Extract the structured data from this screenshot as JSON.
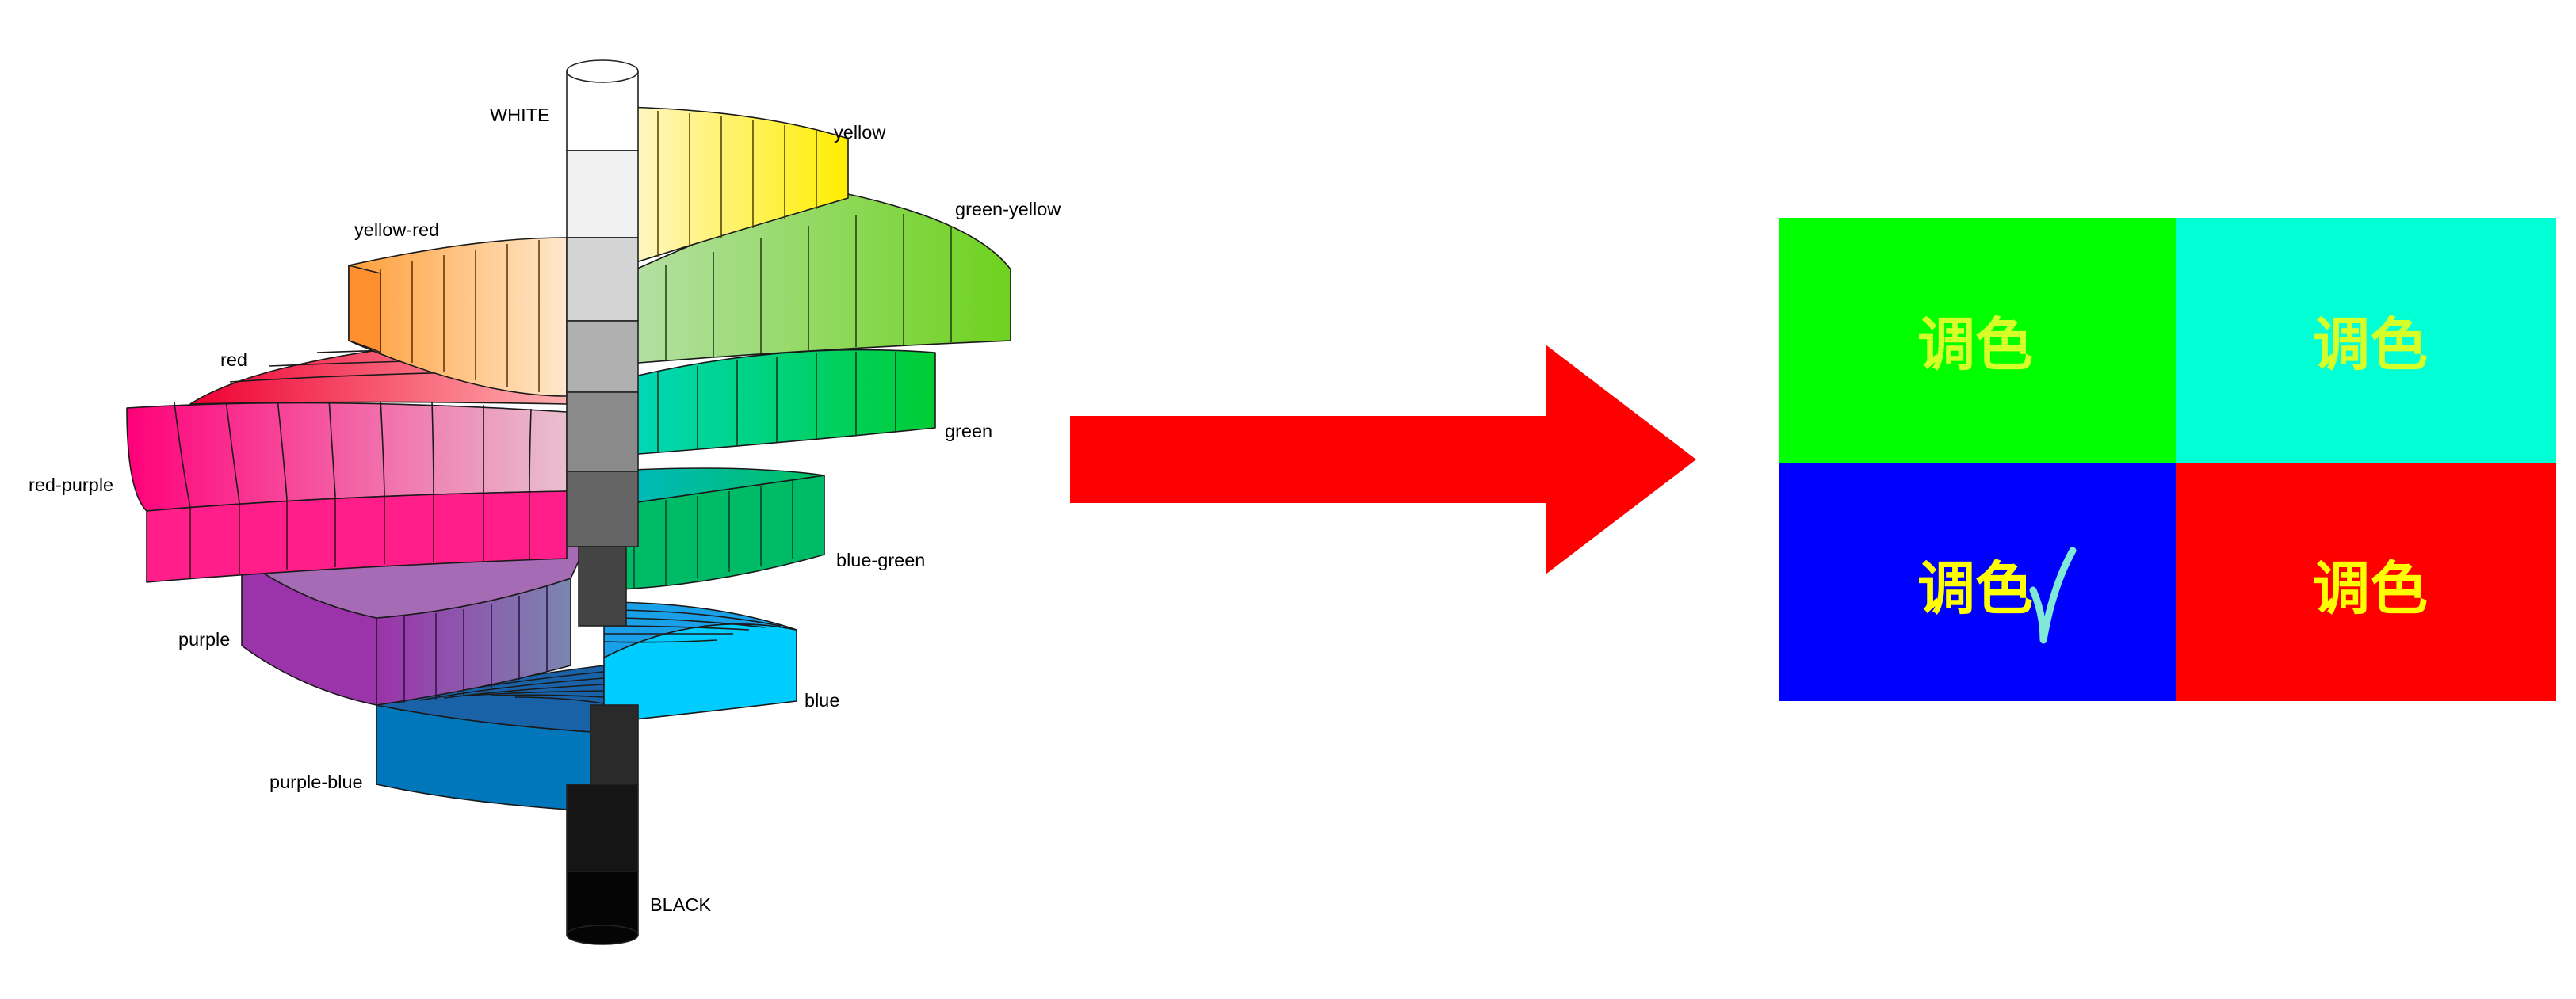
{
  "colors": {
    "white": "#ffffff",
    "black": "#000000",
    "arrow": "#ff0000",
    "check": "#7fe8d6",
    "text_on_cell": "#ffff00"
  },
  "color_solid": {
    "axis_top": "WHITE",
    "axis_bottom": "BLACK",
    "hues": [
      {
        "label": "yellow",
        "color": "#ffee00"
      },
      {
        "label": "green-yellow",
        "color": "#6ed21e"
      },
      {
        "label": "yellow-red",
        "color": "#ffaa00"
      },
      {
        "label": "red",
        "color": "#ee0033"
      },
      {
        "label": "green",
        "color": "#00cc44"
      },
      {
        "label": "red-purple",
        "color": "#ff007a"
      },
      {
        "label": "blue-green",
        "color": "#00bb66"
      },
      {
        "label": "purple",
        "color": "#9b33aa"
      },
      {
        "label": "blue",
        "color": "#00ccff"
      },
      {
        "label": "purple-blue",
        "color": "#0077bb"
      }
    ]
  },
  "palette": {
    "cells": [
      {
        "text": "调色",
        "color": "#00ff00",
        "text_color": "#ffff00"
      },
      {
        "text": "调色",
        "color": "#00ffd5",
        "text_color": "#ffff00"
      },
      {
        "text": "调色",
        "color": "#0000ff",
        "text_color": "#ffff00",
        "checked": true
      },
      {
        "text": "调色",
        "color": "#ff0000",
        "text_color": "#ffff00"
      }
    ],
    "check_mark": "check-icon"
  }
}
